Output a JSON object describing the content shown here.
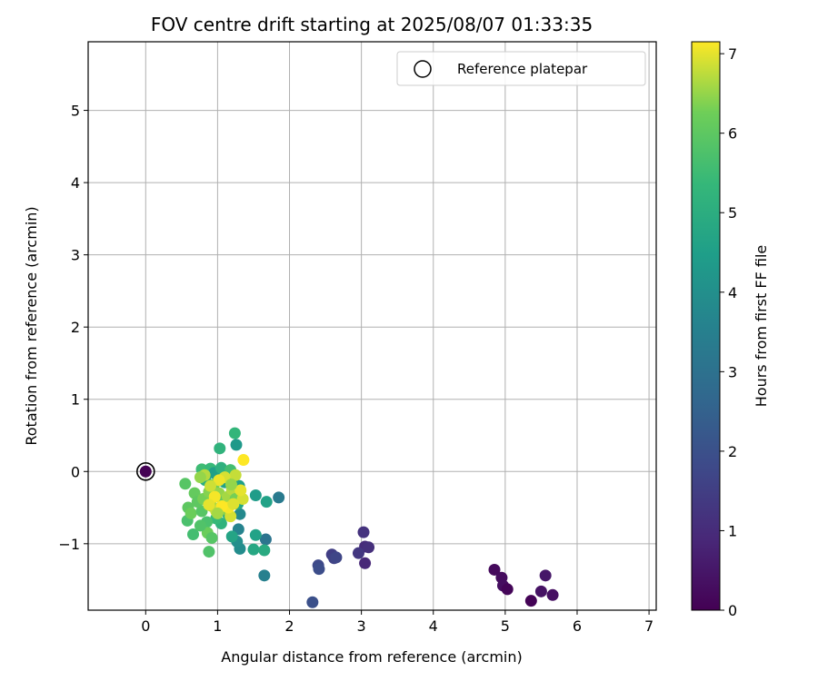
{
  "chart_data": {
    "type": "scatter",
    "title": "FOV centre drift starting at 2025/08/07 01:33:35",
    "xlabel": "Angular distance from reference (arcmin)",
    "ylabel": "Rotation from reference (arcmin)",
    "xlim": [
      -0.8,
      7.1
    ],
    "ylim": [
      -1.92,
      5.95
    ],
    "xticks": [
      0,
      1,
      2,
      3,
      4,
      5,
      6,
      7
    ],
    "yticks": [
      -1,
      0,
      1,
      2,
      3,
      4,
      5
    ],
    "grid": true,
    "legend": {
      "position": "top-right",
      "entries": [
        "Reference platepar"
      ]
    },
    "colorbar": {
      "label": "Hours from first FF file",
      "range": [
        0,
        7.15
      ],
      "ticks": [
        0,
        1,
        2,
        3,
        4,
        5,
        6,
        7
      ],
      "colormap": "viridis"
    },
    "reference_point": {
      "x": 0,
      "y": 0
    },
    "points": [
      {
        "x": 0.0,
        "y": 0.0,
        "h": 0.0
      },
      {
        "x": 4.85,
        "y": -1.36,
        "h": 0.2
      },
      {
        "x": 4.95,
        "y": -1.47,
        "h": 0.25
      },
      {
        "x": 4.97,
        "y": -1.58,
        "h": 0.3
      },
      {
        "x": 5.03,
        "y": -1.63,
        "h": 0.1
      },
      {
        "x": 5.36,
        "y": -1.79,
        "h": 0.05
      },
      {
        "x": 5.5,
        "y": -1.66,
        "h": 0.4
      },
      {
        "x": 5.56,
        "y": -1.44,
        "h": 0.5
      },
      {
        "x": 5.66,
        "y": -1.71,
        "h": 0.35
      },
      {
        "x": 3.03,
        "y": -0.84,
        "h": 1.2
      },
      {
        "x": 3.05,
        "y": -1.04,
        "h": 1.0
      },
      {
        "x": 3.1,
        "y": -1.05,
        "h": 1.1
      },
      {
        "x": 2.96,
        "y": -1.13,
        "h": 1.3
      },
      {
        "x": 3.05,
        "y": -1.27,
        "h": 0.9
      },
      {
        "x": 2.59,
        "y": -1.15,
        "h": 1.5
      },
      {
        "x": 2.62,
        "y": -1.2,
        "h": 1.6
      },
      {
        "x": 2.65,
        "y": -1.19,
        "h": 1.7
      },
      {
        "x": 2.4,
        "y": -1.3,
        "h": 1.8
      },
      {
        "x": 2.41,
        "y": -1.35,
        "h": 1.9
      },
      {
        "x": 2.32,
        "y": -1.81,
        "h": 2.0
      },
      {
        "x": 1.85,
        "y": -0.36,
        "h": 3.3
      },
      {
        "x": 1.67,
        "y": -0.94,
        "h": 3.1
      },
      {
        "x": 1.65,
        "y": -1.44,
        "h": 3.5
      },
      {
        "x": 1.29,
        "y": -0.8,
        "h": 3.6
      },
      {
        "x": 1.31,
        "y": -1.07,
        "h": 3.9
      },
      {
        "x": 1.27,
        "y": -0.97,
        "h": 4.0
      },
      {
        "x": 1.31,
        "y": -0.59,
        "h": 3.8
      },
      {
        "x": 1.26,
        "y": 0.37,
        "h": 4.3
      },
      {
        "x": 1.68,
        "y": -0.42,
        "h": 4.6
      },
      {
        "x": 1.53,
        "y": -0.88,
        "h": 4.6
      },
      {
        "x": 1.5,
        "y": -1.08,
        "h": 4.8
      },
      {
        "x": 1.65,
        "y": -1.09,
        "h": 4.9
      },
      {
        "x": 1.53,
        "y": -0.33,
        "h": 4.4
      },
      {
        "x": 1.24,
        "y": 0.53,
        "h": 5.3
      },
      {
        "x": 1.03,
        "y": 0.32,
        "h": 5.2
      },
      {
        "x": 1.2,
        "y": -0.9,
        "h": 4.7
      },
      {
        "x": 0.66,
        "y": -0.87,
        "h": 5.6
      },
      {
        "x": 0.88,
        "y": -1.11,
        "h": 5.8
      },
      {
        "x": 0.55,
        "y": -0.17,
        "h": 5.9
      },
      {
        "x": 0.59,
        "y": -0.5,
        "h": 6.0
      },
      {
        "x": 0.58,
        "y": -0.68,
        "h": 5.7
      },
      {
        "x": 0.63,
        "y": -0.58,
        "h": 6.2
      },
      {
        "x": 0.68,
        "y": -0.3,
        "h": 6.1
      },
      {
        "x": 0.78,
        "y": 0.03,
        "h": 5.5
      },
      {
        "x": 0.83,
        "y": -0.12,
        "h": 5.0
      },
      {
        "x": 0.9,
        "y": 0.04,
        "h": 5.4
      },
      {
        "x": 0.95,
        "y": -0.02,
        "h": 4.5
      },
      {
        "x": 1.05,
        "y": 0.05,
        "h": 5.1
      },
      {
        "x": 1.1,
        "y": -0.15,
        "h": 4.6
      },
      {
        "x": 1.18,
        "y": 0.02,
        "h": 5.6
      },
      {
        "x": 1.22,
        "y": -0.1,
        "h": 4.2
      },
      {
        "x": 1.3,
        "y": -0.2,
        "h": 4.5
      },
      {
        "x": 1.28,
        "y": -0.45,
        "h": 4.8
      },
      {
        "x": 1.15,
        "y": -0.6,
        "h": 5.0
      },
      {
        "x": 1.05,
        "y": -0.72,
        "h": 5.2
      },
      {
        "x": 0.98,
        "y": -0.65,
        "h": 5.4
      },
      {
        "x": 0.85,
        "y": -0.7,
        "h": 5.7
      },
      {
        "x": 0.78,
        "y": -0.55,
        "h": 5.9
      },
      {
        "x": 0.72,
        "y": -0.42,
        "h": 6.0
      },
      {
        "x": 0.8,
        "y": -0.38,
        "h": 6.3
      },
      {
        "x": 0.88,
        "y": -0.28,
        "h": 6.4
      },
      {
        "x": 0.95,
        "y": -0.18,
        "h": 6.2
      },
      {
        "x": 1.02,
        "y": -0.3,
        "h": 6.5
      },
      {
        "x": 1.08,
        "y": -0.42,
        "h": 6.1
      },
      {
        "x": 1.14,
        "y": -0.35,
        "h": 6.6
      },
      {
        "x": 1.2,
        "y": -0.25,
        "h": 6.7
      },
      {
        "x": 1.25,
        "y": -0.38,
        "h": 6.3
      },
      {
        "x": 0.92,
        "y": -0.48,
        "h": 6.6
      },
      {
        "x": 0.98,
        "y": -0.55,
        "h": 6.8
      },
      {
        "x": 1.12,
        "y": -0.52,
        "h": 6.4
      },
      {
        "x": 1.18,
        "y": -0.62,
        "h": 6.9
      },
      {
        "x": 0.86,
        "y": -0.85,
        "h": 6.2
      },
      {
        "x": 0.92,
        "y": -0.92,
        "h": 5.9
      },
      {
        "x": 0.76,
        "y": -0.75,
        "h": 5.8
      },
      {
        "x": 1.35,
        "y": -0.38,
        "h": 6.9
      },
      {
        "x": 1.32,
        "y": -0.26,
        "h": 7.0
      },
      {
        "x": 1.36,
        "y": 0.16,
        "h": 7.15
      },
      {
        "x": 1.25,
        "y": -0.05,
        "h": 6.8
      },
      {
        "x": 1.1,
        "y": -0.08,
        "h": 6.9
      },
      {
        "x": 1.02,
        "y": -0.12,
        "h": 7.05
      },
      {
        "x": 0.96,
        "y": -0.35,
        "h": 7.1
      },
      {
        "x": 0.88,
        "y": -0.46,
        "h": 7.0
      },
      {
        "x": 0.82,
        "y": -0.05,
        "h": 6.7
      },
      {
        "x": 0.76,
        "y": -0.08,
        "h": 6.5
      },
      {
        "x": 1.15,
        "y": -0.5,
        "h": 7.1
      },
      {
        "x": 1.06,
        "y": -0.48,
        "h": 7.15
      },
      {
        "x": 1.22,
        "y": -0.45,
        "h": 6.95
      },
      {
        "x": 1.0,
        "y": -0.58,
        "h": 6.6
      },
      {
        "x": 0.9,
        "y": -0.2,
        "h": 6.85
      },
      {
        "x": 1.19,
        "y": -0.18,
        "h": 6.5
      }
    ]
  }
}
